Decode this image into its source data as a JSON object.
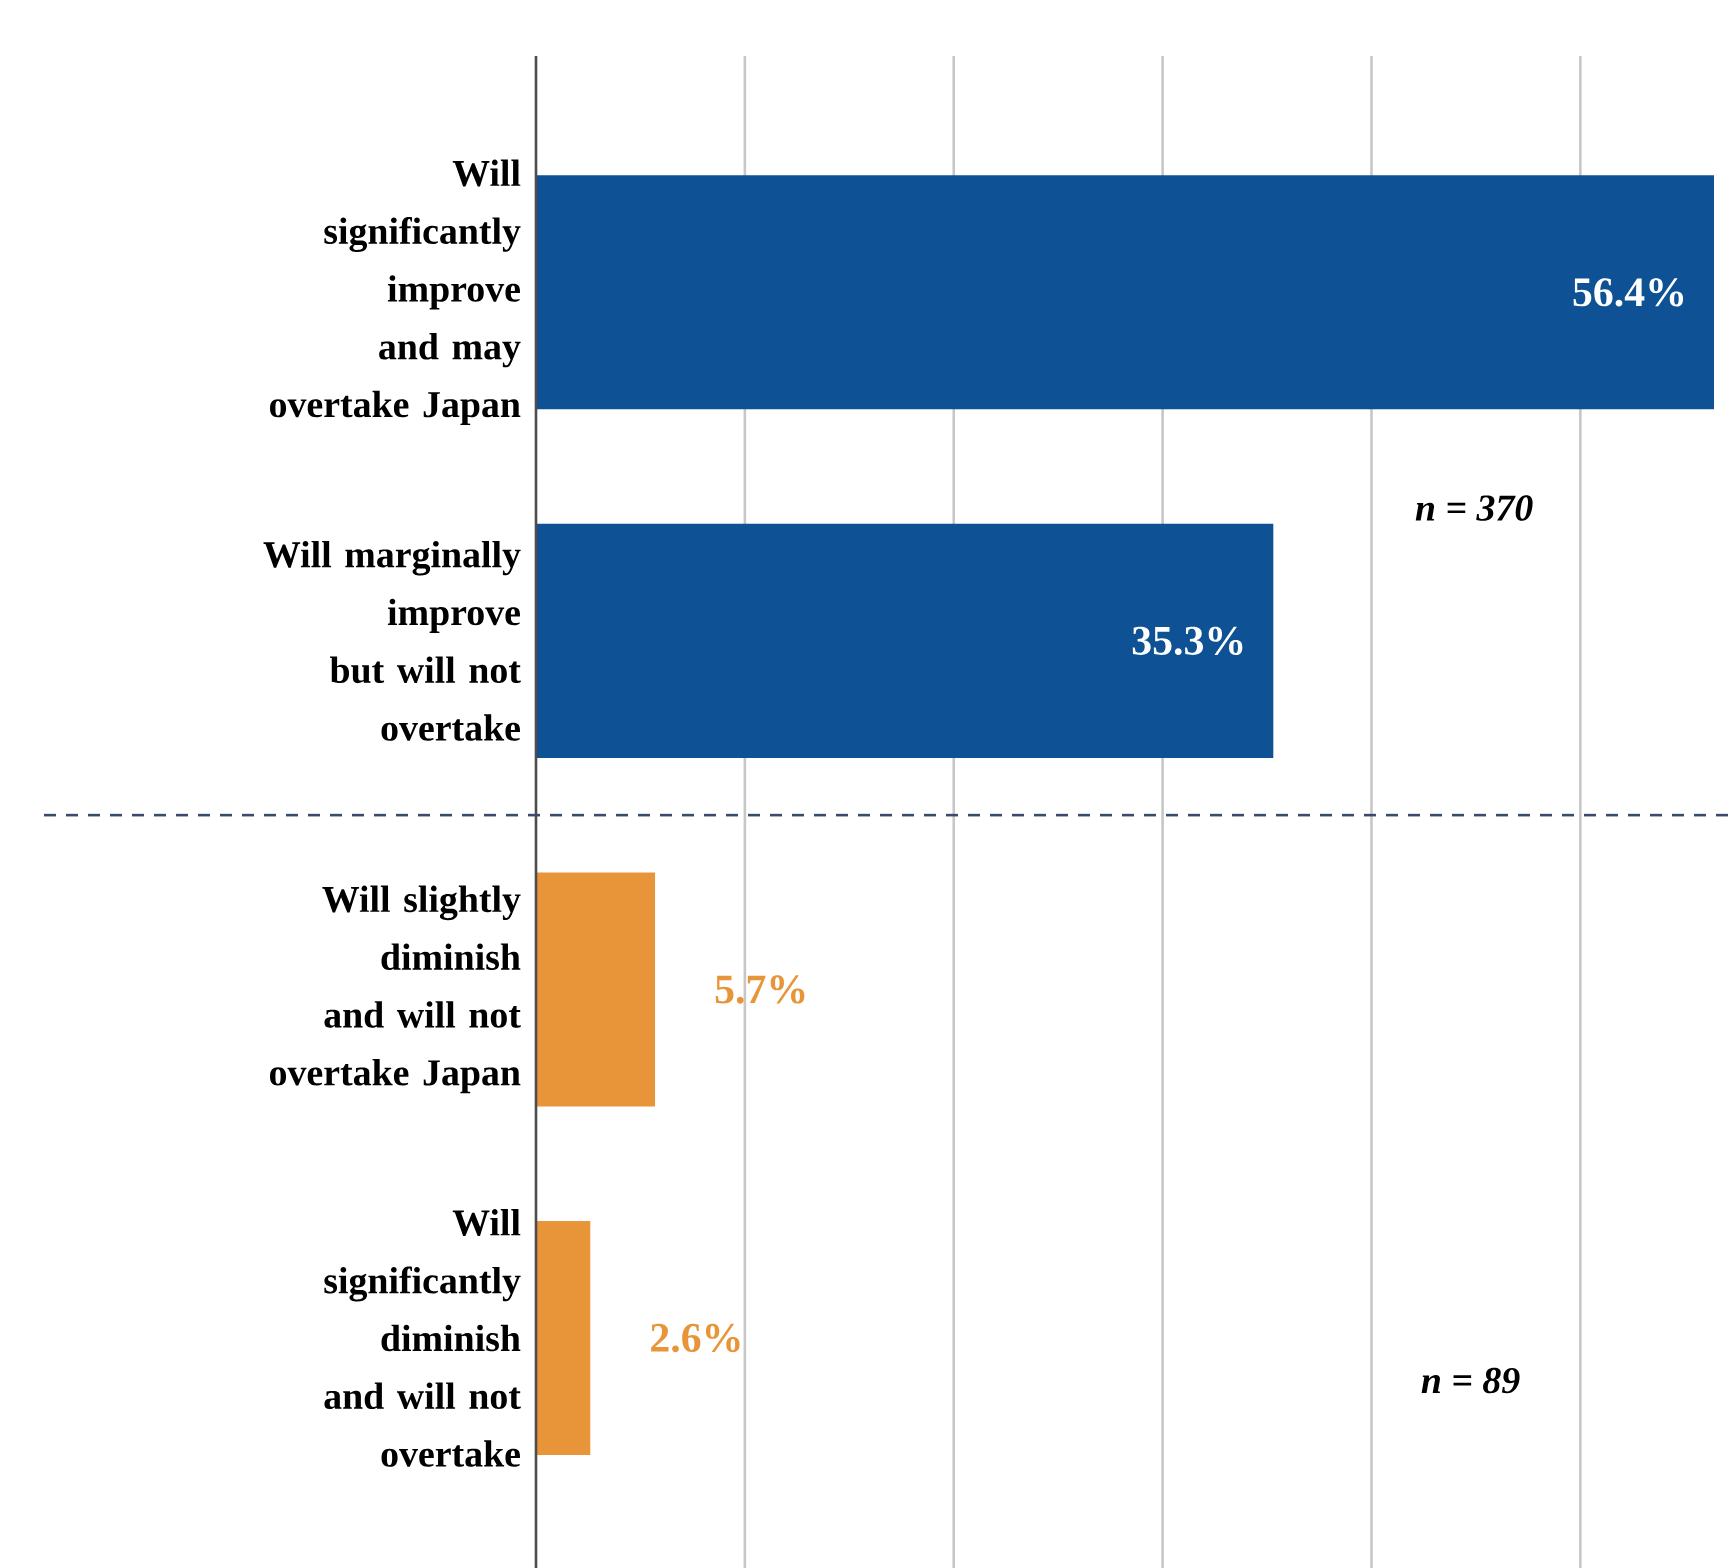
{
  "chart_data": {
    "type": "bar",
    "orientation": "horizontal",
    "categories": [
      "Will significantly improve and may overtake Japan",
      "Will marginally improve but will not overtake",
      "Will slightly diminish and will not overtake Japan",
      "Will significantly diminish and will not overtake"
    ],
    "values": [
      56.4,
      35.3,
      5.7,
      2.6
    ],
    "colors": [
      "#0e5295",
      "#0e5295",
      "#e8953a",
      "#e8953a"
    ],
    "value_labels": [
      "56.4%",
      "35.3%",
      "5.7%",
      "2.6%"
    ],
    "xticks": [
      {
        "value": 10,
        "label": null
      },
      {
        "value": 20,
        "label": null
      },
      {
        "value": 30,
        "label": null
      },
      {
        "value": 40,
        "label": null
      },
      {
        "value": 50,
        "label": null
      }
    ],
    "grid": "x",
    "tick_labels": "y",
    "annotations": [
      "n = 370",
      "n = 89"
    ]
  }
}
